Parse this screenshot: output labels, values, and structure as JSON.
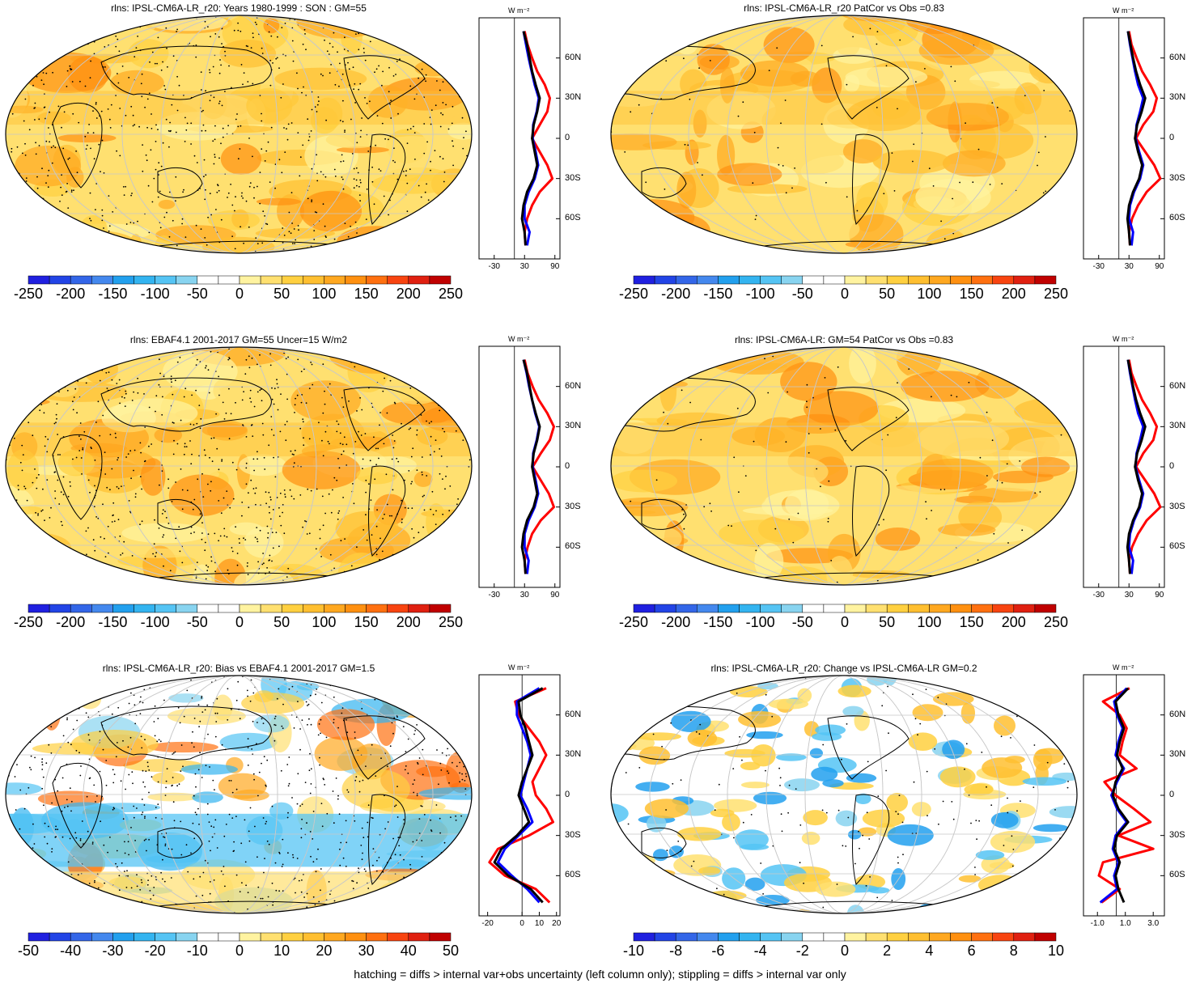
{
  "footer": "hatching = diffs > internal var+obs uncertainty (left column only); stippling = diffs > internal var only",
  "profile_unit": "W m⁻²",
  "lat_labels": [
    "60N",
    "30N",
    "0",
    "30S",
    "60S"
  ],
  "colors": {
    "model_line": "#000000",
    "obs_line": "#0000ff",
    "third_line": "#ff0000",
    "graticule": "#c8c8c8"
  },
  "palette": [
    "#2020e0",
    "#2244e6",
    "#3366e8",
    "#4488ee",
    "#22a0ee",
    "#33b4f0",
    "#55c4f4",
    "#88d4f0",
    "#ffffff",
    "#ffffff",
    "#fff3a0",
    "#ffe070",
    "#ffd040",
    "#ffbf30",
    "#ffa820",
    "#ff9010",
    "#ff7010",
    "#f84410",
    "#e02010",
    "#c00000"
  ],
  "chart_data": [
    {
      "type": "heatmap",
      "title": "rlns: IPSL-CM6A-LR_r20: Years 1980-1999 : SON : GM=55",
      "colorbar_labels": [
        "-250",
        "-200",
        "-150",
        "-100",
        "-50",
        "0",
        "50",
        "100",
        "150",
        "200",
        "250"
      ],
      "profile_xticks": [
        "-30",
        "30",
        "90"
      ],
      "profile": {
        "lat": [
          80,
          70,
          60,
          50,
          40,
          30,
          20,
          10,
          0,
          -10,
          -20,
          -30,
          -40,
          -50,
          -60,
          -70,
          -80
        ],
        "model": [
          28,
          35,
          40,
          45,
          52,
          60,
          55,
          48,
          45,
          50,
          55,
          48,
          35,
          28,
          25,
          30,
          32
        ],
        "obs": [
          28,
          33,
          38,
          44,
          50,
          58,
          54,
          47,
          46,
          52,
          57,
          50,
          38,
          30,
          30,
          40,
          35
        ],
        "third": [
          30,
          36,
          45,
          55,
          70,
          80,
          75,
          60,
          45,
          60,
          75,
          85,
          60,
          45,
          35,
          30,
          32
        ]
      }
    },
    {
      "type": "heatmap",
      "title": "rlns: IPSL-CM6A-LR_r20 PatCor vs Obs =0.83",
      "colorbar_labels": [
        "-250",
        "-200",
        "-150",
        "-100",
        "-50",
        "0",
        "50",
        "100",
        "150",
        "200",
        "250"
      ],
      "profile_xticks": [
        "-30",
        "30",
        "90"
      ],
      "profile": {
        "lat": [
          80,
          70,
          60,
          50,
          40,
          30,
          20,
          10,
          0,
          -10,
          -20,
          -30,
          -40,
          -50,
          -60,
          -70,
          -80
        ],
        "model": [
          28,
          33,
          38,
          44,
          52,
          62,
          55,
          46,
          42,
          48,
          56,
          50,
          38,
          30,
          27,
          30,
          32
        ],
        "obs": [
          28,
          32,
          37,
          42,
          48,
          58,
          52,
          45,
          43,
          50,
          58,
          52,
          40,
          32,
          30,
          38,
          35
        ],
        "third": [
          30,
          35,
          45,
          56,
          72,
          85,
          78,
          58,
          44,
          62,
          80,
          92,
          65,
          48,
          36,
          30,
          32
        ]
      }
    },
    {
      "type": "heatmap",
      "title": "rlns: EBAF4.1 2001-2017 GM=55 Uncer=15 W/m2",
      "colorbar_labels": [
        "-250",
        "-200",
        "-150",
        "-100",
        "-50",
        "0",
        "50",
        "100",
        "150",
        "200",
        "250"
      ],
      "profile_xticks": [
        "-30",
        "30",
        "90"
      ],
      "profile": {
        "lat": [
          80,
          70,
          60,
          50,
          40,
          30,
          20,
          10,
          0,
          -10,
          -20,
          -30,
          -40,
          -50,
          -60,
          -70,
          -80
        ],
        "model": [
          28,
          35,
          40,
          45,
          52,
          60,
          55,
          48,
          45,
          50,
          55,
          48,
          35,
          28,
          25,
          30,
          32
        ],
        "obs": [
          28,
          34,
          39,
          45,
          51,
          59,
          54,
          47,
          46,
          52,
          57,
          50,
          38,
          30,
          30,
          38,
          35
        ],
        "third": [
          30,
          36,
          46,
          58,
          75,
          88,
          80,
          62,
          46,
          62,
          78,
          88,
          62,
          45,
          36,
          30,
          32
        ]
      }
    },
    {
      "type": "heatmap",
      "title": "rlns: IPSL-CM6A-LR: GM=54 PatCor vs Obs =0.83",
      "colorbar_labels": [
        "-250",
        "-200",
        "-150",
        "-100",
        "-50",
        "0",
        "50",
        "100",
        "150",
        "200",
        "250"
      ],
      "profile_xticks": [
        "-30",
        "30",
        "90"
      ],
      "profile": {
        "lat": [
          80,
          70,
          60,
          50,
          40,
          30,
          20,
          10,
          0,
          -10,
          -20,
          -30,
          -40,
          -50,
          -60,
          -70,
          -80
        ],
        "model": [
          28,
          33,
          38,
          44,
          52,
          62,
          55,
          46,
          42,
          48,
          56,
          50,
          38,
          30,
          27,
          30,
          32
        ],
        "obs": [
          28,
          32,
          37,
          42,
          48,
          58,
          52,
          45,
          43,
          50,
          58,
          52,
          40,
          32,
          30,
          38,
          35
        ],
        "third": [
          30,
          35,
          45,
          56,
          72,
          85,
          78,
          58,
          44,
          62,
          80,
          92,
          65,
          48,
          36,
          30,
          32
        ]
      }
    },
    {
      "type": "heatmap",
      "title": "rlns: IPSL-CM6A-LR_r20: Bias vs EBAF4.1 2001-2017  GM=1.5",
      "colorbar_labels": [
        "-50",
        "-40",
        "-30",
        "-20",
        "-10",
        "0",
        "10",
        "20",
        "30",
        "40",
        "50"
      ],
      "profile_xticks": [
        "-20",
        "0",
        "10",
        "20"
      ],
      "profile": {
        "lat": [
          80,
          70,
          60,
          50,
          40,
          30,
          20,
          10,
          0,
          -10,
          -20,
          -30,
          -40,
          -50,
          -60,
          -70,
          -80
        ],
        "model": [
          12,
          -2,
          -1,
          2,
          4,
          6,
          3,
          0,
          -2,
          1,
          4,
          -3,
          -12,
          -16,
          -8,
          5,
          12
        ],
        "obs": [
          10,
          -3,
          -3,
          0,
          3,
          5,
          3,
          1,
          -1,
          3,
          6,
          -2,
          -10,
          -14,
          -6,
          3,
          10
        ],
        "third": [
          14,
          -4,
          -2,
          4,
          10,
          14,
          10,
          6,
          8,
          14,
          18,
          4,
          -14,
          -19,
          -10,
          8,
          16
        ]
      }
    },
    {
      "type": "heatmap",
      "title": "rlns: IPSL-CM6A-LR_r20: Change vs IPSL-CM6A-LR GM=0.2",
      "colorbar_labels": [
        "-10",
        "-8",
        "-6",
        "-4",
        "-2",
        "0",
        "2",
        "4",
        "6",
        "8",
        "10"
      ],
      "profile_xticks": [
        "-1.0",
        "1.0",
        "3.0"
      ],
      "profile": {
        "lat": [
          80,
          70,
          60,
          50,
          40,
          30,
          20,
          10,
          0,
          -10,
          -20,
          -30,
          -40,
          -50,
          -60,
          -70,
          -80
        ],
        "model": [
          1.2,
          0.3,
          0.5,
          0.9,
          0.6,
          0.4,
          0.8,
          0.3,
          0.1,
          0.5,
          1.2,
          0.4,
          0.2,
          0.6,
          0.3,
          0.5,
          0.9
        ],
        "obs": [
          1.1,
          0.2,
          0.4,
          0.8,
          0.5,
          0.3,
          0.9,
          0.4,
          0.0,
          0.4,
          1.1,
          0.3,
          0.1,
          0.5,
          0.2,
          0.4,
          -0.8
        ],
        "third": [
          1.3,
          -0.6,
          0.6,
          1.1,
          0.8,
          0.6,
          1.8,
          -0.5,
          0.3,
          1.6,
          2.8,
          0.5,
          3.0,
          -0.6,
          -0.9,
          0.6,
          -0.7
        ]
      }
    }
  ]
}
